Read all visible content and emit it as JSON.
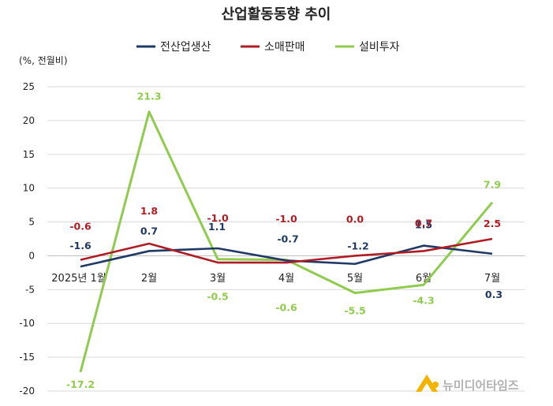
{
  "chart_data": {
    "type": "line",
    "title": "산업활동동향 추이",
    "unit_label": "(%, 전월비)",
    "categories": [
      "2025년 1월",
      "2월",
      "3월",
      "4월",
      "5월",
      "6월",
      "7월"
    ],
    "ylim": [
      -20,
      25
    ],
    "yticks": [
      25,
      20,
      15,
      10,
      5,
      0,
      -5,
      -10,
      -15,
      -20
    ],
    "grid": true,
    "legend_position": "top",
    "series": [
      {
        "name": "전산업생산",
        "color": "#1f3864",
        "values": [
          -1.6,
          0.7,
          1.1,
          -0.7,
          -1.2,
          1.5,
          0.3
        ],
        "labels": [
          "-1.6",
          "0.7",
          "1.1",
          "-0.7",
          "-1.2",
          "1.5",
          "0.3"
        ]
      },
      {
        "name": "소매판매",
        "color": "#b01c24",
        "values": [
          -0.6,
          1.8,
          -1.0,
          -1.0,
          0.0,
          0.7,
          2.5
        ],
        "labels": [
          "-0.6",
          "1.8",
          "-1.0",
          "-1.0",
          "0.0",
          "0.7",
          "2.5"
        ]
      },
      {
        "name": "설비투자",
        "color": "#8fcb4d",
        "values": [
          -17.2,
          21.3,
          -0.5,
          -0.6,
          -5.5,
          -4.3,
          7.9
        ],
        "labels": [
          "-17.2",
          "21.3",
          "-0.5",
          "-0.6",
          "-5.5",
          "-4.3",
          "7.9"
        ]
      }
    ]
  },
  "watermark": {
    "text": "뉴미디어타임즈",
    "icon": "mountain-logo-icon",
    "color": "#f2b400"
  }
}
